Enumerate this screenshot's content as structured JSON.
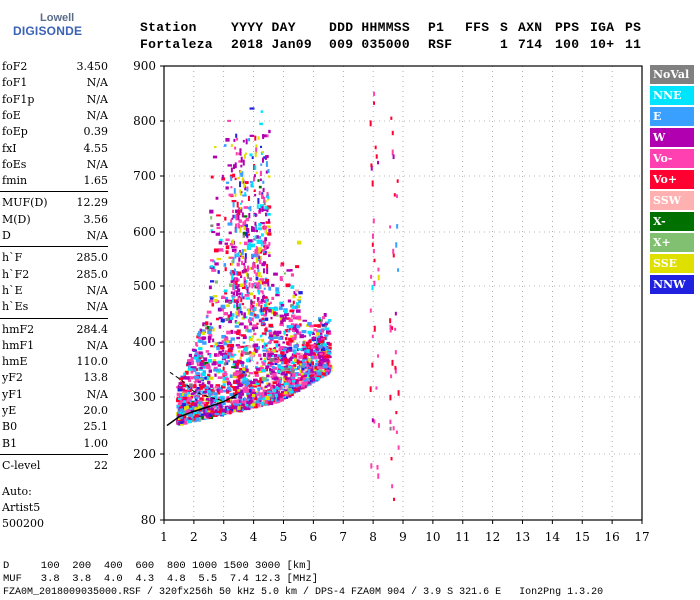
{
  "logo": {
    "line1": "Lowell",
    "line2": "DIGISONDE"
  },
  "header": {
    "row1": [
      "Station",
      "YYYY DAY",
      "DDD HHMMSS",
      "P1",
      "FFS",
      "S",
      "AXN",
      "PPS",
      "IGA",
      "PS"
    ],
    "row2": [
      "Fortaleza",
      "2018 Jan09",
      "009 035000",
      "RSF",
      "",
      "1",
      "714",
      "100",
      "10+",
      "11"
    ]
  },
  "params": [
    {
      "name": "foF2",
      "value": "3.450"
    },
    {
      "name": "foF1",
      "value": "N/A"
    },
    {
      "name": "foF1p",
      "value": "N/A"
    },
    {
      "name": "foE",
      "value": "N/A"
    },
    {
      "name": "foEp",
      "value": "0.39"
    },
    {
      "name": "fxI",
      "value": "4.55"
    },
    {
      "name": "foEs",
      "value": "N/A"
    },
    {
      "name": "fmin",
      "value": "1.65"
    },
    {
      "name": "MUF(D)",
      "value": "12.29"
    },
    {
      "name": "M(D)",
      "value": "3.56"
    },
    {
      "name": "D",
      "value": "N/A"
    },
    {
      "name": "h`F",
      "value": "285.0"
    },
    {
      "name": "h`F2",
      "value": "285.0"
    },
    {
      "name": "h`E",
      "value": "N/A"
    },
    {
      "name": "h`Es",
      "value": "N/A"
    },
    {
      "name": "hmF2",
      "value": "284.4"
    },
    {
      "name": "hmF1",
      "value": "N/A"
    },
    {
      "name": "hmE",
      "value": "110.0"
    },
    {
      "name": "yF2",
      "value": "13.8"
    },
    {
      "name": "yF1",
      "value": "N/A"
    },
    {
      "name": "yE",
      "value": "20.0"
    },
    {
      "name": "B0",
      "value": "25.1"
    },
    {
      "name": "B1",
      "value": "1.00"
    },
    {
      "name": "C-level",
      "value": "22"
    }
  ],
  "auto": {
    "line1": "Auto:",
    "line2": "Artist5",
    "line3": "500200"
  },
  "legend": [
    {
      "label": "NoVal",
      "color": "#808080"
    },
    {
      "label": "NNE",
      "color": "#00e5ff"
    },
    {
      "label": "E",
      "color": "#3aa0ff"
    },
    {
      "label": "W",
      "color": "#b000b0"
    },
    {
      "label": "Vo-",
      "color": "#ff40b0"
    },
    {
      "label": "Vo+",
      "color": "#ff0030"
    },
    {
      "label": "SSW",
      "color": "#ffb0b0"
    },
    {
      "label": "X-",
      "color": "#007000"
    },
    {
      "label": "X+",
      "color": "#80c070"
    },
    {
      "label": "SSE",
      "color": "#e0e000"
    },
    {
      "label": "NNW",
      "color": "#2020e0"
    }
  ],
  "chart_data": {
    "type": "scatter",
    "xlabel": "",
    "ylabel": "",
    "xlim": [
      1,
      17
    ],
    "ylim": [
      80,
      900
    ],
    "x_ticks": [
      1,
      2,
      3,
      4,
      5,
      6,
      7,
      8,
      9,
      10,
      11,
      12,
      13,
      14,
      15,
      16,
      17
    ],
    "y_ticks": [
      80,
      200,
      300,
      400,
      500,
      600,
      700,
      800,
      900
    ],
    "clusters": [
      {
        "name": "main echo trace",
        "freq_range_mhz": [
          1.4,
          6.5
        ],
        "height_range_km": [
          255,
          880
        ]
      },
      {
        "name": "spread band near 8-9 MHz",
        "freq_range_mhz": [
          7.9,
          8.8
        ],
        "height_range_km": [
          90,
          860
        ]
      }
    ],
    "profile_trace": [
      [
        1.1,
        250
      ],
      [
        1.5,
        265
      ],
      [
        2.0,
        275
      ],
      [
        2.5,
        283
      ],
      [
        3.0,
        292
      ],
      [
        3.45,
        305
      ]
    ],
    "profile_trace_2": [
      [
        1.2,
        345
      ],
      [
        1.6,
        330
      ],
      [
        2.0,
        310
      ],
      [
        2.5,
        300
      ],
      [
        3.0,
        293
      ],
      [
        3.4,
        300
      ]
    ]
  },
  "footer": {
    "d_row": "D     100  200  400  600  800 1000 1500 3000 [km]",
    "muf_row": "MUF   3.8  3.8  4.0  4.3  4.8  5.5  7.4 12.3 [MHz]",
    "file_row": "FZA0M_2018009035000.RSF / 320fx256h 50 kHz 5.0 km / DPS-4 FZA0M 904 / 3.9 S 321.6 E   Ion2Png 1.3.20"
  }
}
